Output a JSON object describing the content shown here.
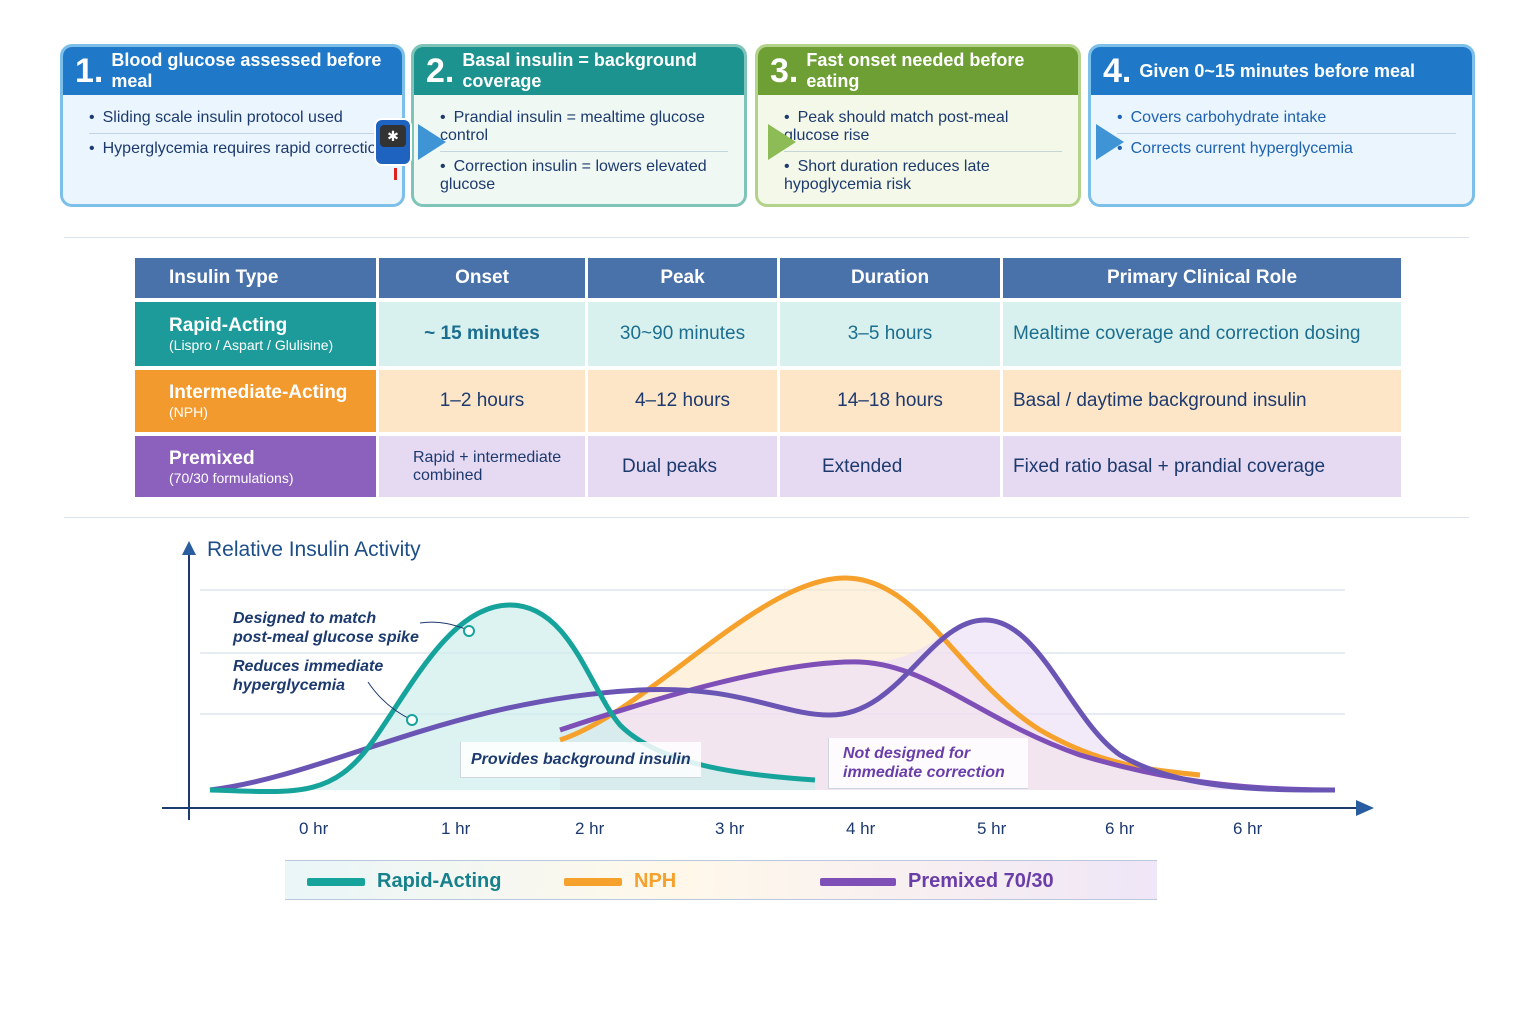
{
  "steps": [
    {
      "num": "1.",
      "title": "Blood glucose assessed before meal",
      "items": [
        "Sliding scale insulin protocol used",
        "Hyperglycemia requires rapid correction"
      ]
    },
    {
      "num": "2.",
      "title": "Basal insulin = background coverage",
      "items": [
        "Prandial insulin = mealtime glucose control",
        "Correction insulin = lowers elevated glucose"
      ]
    },
    {
      "num": "3.",
      "title": "Fast onset needed before eating",
      "items": [
        "Peak should match post-meal glucose rise",
        "Short duration reduces late hypoglycemia risk"
      ]
    },
    {
      "num": "4.",
      "title": "Given 0~15 minutes before meal",
      "items": [
        "Covers carbohydrate intake",
        "Corrects current hyperglycemia"
      ]
    }
  ],
  "table": {
    "headers": [
      "Insulin Type",
      "Onset",
      "Peak",
      "Duration",
      "Primary Clinical Role"
    ],
    "rows": [
      {
        "type": "Rapid-Acting",
        "sub": "(Lispro / Aspart / Glulisine)",
        "onset": "~ 15 minutes",
        "peak": "30~90 minutes",
        "duration": "3–5 hours",
        "role": "Mealtime coverage and correction dosing"
      },
      {
        "type": "Intermediate-Acting",
        "sub": "(NPH)",
        "onset": "1–2 hours",
        "peak": "4–12 hours",
        "duration": "14–18 hours",
        "role": "Basal / daytime background insulin"
      },
      {
        "type": "Premixed",
        "sub": "(70/30 formulations)",
        "onset": "Rapid + intermediate combined",
        "peak": "Dual peaks",
        "duration": "Extended",
        "role": "Fixed ratio basal + prandial coverage"
      }
    ]
  },
  "chart": {
    "ylabel": "Relative Insulin Activity",
    "xticks": [
      "0 hr",
      "1 hr",
      "2 hr",
      "3 hr",
      "4 hr",
      "5 hr",
      "6 hr",
      "6 hr"
    ],
    "annotations": {
      "a1": "Designed to match post-meal glucose spike",
      "a2": "Reduces immediate hyperglycemia",
      "a3": "Provides background insulin",
      "a4": "Not designed for immediate correction"
    },
    "legend": [
      {
        "name": "Rapid-Acting",
        "color": "#16a39c"
      },
      {
        "name": "NPH",
        "color": "#f5a12c"
      },
      {
        "name": "Premixed 70/30",
        "color": "#7f4fb8"
      }
    ]
  }
}
